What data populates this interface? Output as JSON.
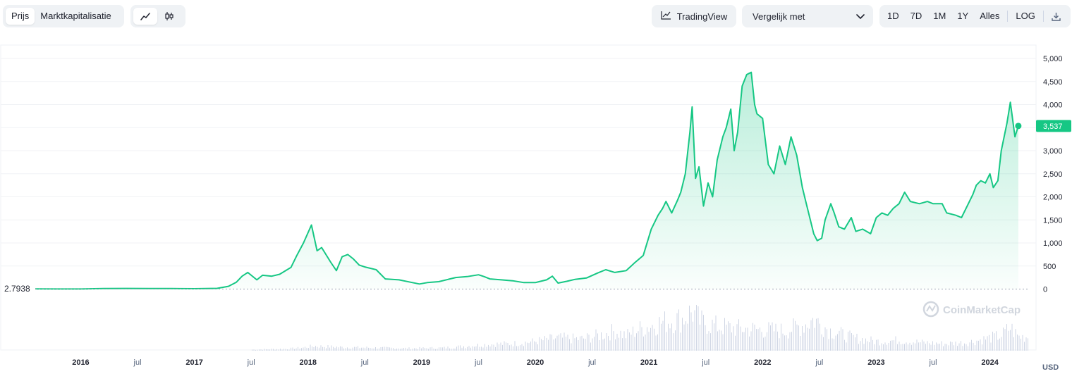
{
  "toolbar": {
    "tabs": [
      "Prijs",
      "Marktkapitalisatie"
    ],
    "active_tab": "Prijs",
    "chart_modes": [
      {
        "icon": "line-chart-icon",
        "active": true
      },
      {
        "icon": "candlestick-icon",
        "active": false
      }
    ],
    "tradingview_label": "TradingView",
    "compare_label": "Vergelijk met",
    "ranges": [
      "1D",
      "7D",
      "1M",
      "1Y",
      "Alles"
    ],
    "active_range": "Alles",
    "log_label": "LOG",
    "download_icon": "download-icon"
  },
  "watermark": "CoinMarketCap",
  "colors": {
    "line": "#16c784",
    "accent_bg": "#16c784",
    "volume": "#cfd6e4",
    "axis_text": "#58667e"
  },
  "chart_data": {
    "type": "line",
    "currency": "USD",
    "start_value_label": "2.7938",
    "current_price_label": "3,537",
    "x_ticks": [
      "2016",
      "jul",
      "2017",
      "jul",
      "2018",
      "jul",
      "2019",
      "jul",
      "2020",
      "jul",
      "2021",
      "jul",
      "2022",
      "jul",
      "2023",
      "jul",
      "2024"
    ],
    "y_ticks": [
      "0",
      "500",
      "1,000",
      "1,500",
      "2,000",
      "2,500",
      "3,000",
      "3,500",
      "4,000",
      "4,500",
      "5,000"
    ],
    "y_tick_values": [
      0,
      500,
      1000,
      1500,
      2000,
      2500,
      3000,
      3500,
      4000,
      4500,
      5000
    ],
    "ylim": [
      0,
      5000
    ],
    "xlim": [
      2015.6,
      2024.35
    ],
    "series": [
      {
        "points": [
          [
            2015.6,
            2.79
          ],
          [
            2015.8,
            1
          ],
          [
            2016.0,
            1
          ],
          [
            2016.2,
            10
          ],
          [
            2016.4,
            14
          ],
          [
            2016.6,
            12
          ],
          [
            2016.8,
            11
          ],
          [
            2017.0,
            8
          ],
          [
            2017.2,
            15
          ],
          [
            2017.3,
            60
          ],
          [
            2017.37,
            150
          ],
          [
            2017.42,
            280
          ],
          [
            2017.47,
            360
          ],
          [
            2017.55,
            200
          ],
          [
            2017.6,
            300
          ],
          [
            2017.68,
            280
          ],
          [
            2017.75,
            320
          ],
          [
            2017.85,
            470
          ],
          [
            2017.9,
            720
          ],
          [
            2017.96,
            1000
          ],
          [
            2018.03,
            1390
          ],
          [
            2018.08,
            830
          ],
          [
            2018.12,
            900
          ],
          [
            2018.2,
            580
          ],
          [
            2018.25,
            400
          ],
          [
            2018.3,
            700
          ],
          [
            2018.35,
            750
          ],
          [
            2018.4,
            650
          ],
          [
            2018.45,
            520
          ],
          [
            2018.5,
            480
          ],
          [
            2018.6,
            420
          ],
          [
            2018.68,
            220
          ],
          [
            2018.8,
            200
          ],
          [
            2018.9,
            150
          ],
          [
            2018.98,
            110
          ],
          [
            2019.05,
            140
          ],
          [
            2019.15,
            160
          ],
          [
            2019.3,
            250
          ],
          [
            2019.4,
            270
          ],
          [
            2019.5,
            310
          ],
          [
            2019.55,
            270
          ],
          [
            2019.6,
            220
          ],
          [
            2019.7,
            200
          ],
          [
            2019.8,
            180
          ],
          [
            2019.9,
            140
          ],
          [
            2020.0,
            140
          ],
          [
            2020.1,
            200
          ],
          [
            2020.15,
            280
          ],
          [
            2020.2,
            130
          ],
          [
            2020.28,
            170
          ],
          [
            2020.35,
            210
          ],
          [
            2020.45,
            240
          ],
          [
            2020.55,
            350
          ],
          [
            2020.62,
            420
          ],
          [
            2020.7,
            360
          ],
          [
            2020.8,
            400
          ],
          [
            2020.87,
            560
          ],
          [
            2020.95,
            730
          ],
          [
            2021.02,
            1300
          ],
          [
            2021.08,
            1600
          ],
          [
            2021.12,
            1750
          ],
          [
            2021.15,
            1900
          ],
          [
            2021.2,
            1650
          ],
          [
            2021.25,
            1920
          ],
          [
            2021.28,
            2100
          ],
          [
            2021.32,
            2500
          ],
          [
            2021.36,
            3400
          ],
          [
            2021.38,
            3950
          ],
          [
            2021.41,
            2400
          ],
          [
            2021.44,
            2650
          ],
          [
            2021.48,
            1800
          ],
          [
            2021.52,
            2300
          ],
          [
            2021.56,
            2000
          ],
          [
            2021.6,
            2800
          ],
          [
            2021.65,
            3300
          ],
          [
            2021.68,
            3500
          ],
          [
            2021.72,
            3900
          ],
          [
            2021.75,
            3000
          ],
          [
            2021.78,
            3400
          ],
          [
            2021.82,
            4400
          ],
          [
            2021.86,
            4650
          ],
          [
            2021.9,
            4700
          ],
          [
            2021.93,
            4000
          ],
          [
            2021.95,
            3800
          ],
          [
            2022.0,
            3700
          ],
          [
            2022.05,
            2700
          ],
          [
            2022.1,
            2500
          ],
          [
            2022.15,
            3100
          ],
          [
            2022.2,
            2700
          ],
          [
            2022.25,
            3300
          ],
          [
            2022.3,
            2900
          ],
          [
            2022.35,
            2200
          ],
          [
            2022.38,
            1900
          ],
          [
            2022.45,
            1200
          ],
          [
            2022.48,
            1050
          ],
          [
            2022.52,
            1100
          ],
          [
            2022.55,
            1500
          ],
          [
            2022.6,
            1850
          ],
          [
            2022.63,
            1650
          ],
          [
            2022.67,
            1350
          ],
          [
            2022.72,
            1300
          ],
          [
            2022.78,
            1550
          ],
          [
            2022.82,
            1250
          ],
          [
            2022.88,
            1300
          ],
          [
            2022.95,
            1200
          ],
          [
            2023.0,
            1550
          ],
          [
            2023.05,
            1650
          ],
          [
            2023.1,
            1600
          ],
          [
            2023.15,
            1750
          ],
          [
            2023.2,
            1850
          ],
          [
            2023.25,
            2100
          ],
          [
            2023.3,
            1900
          ],
          [
            2023.38,
            1850
          ],
          [
            2023.45,
            1900
          ],
          [
            2023.5,
            1850
          ],
          [
            2023.58,
            1850
          ],
          [
            2023.62,
            1650
          ],
          [
            2023.7,
            1600
          ],
          [
            2023.75,
            1550
          ],
          [
            2023.8,
            1800
          ],
          [
            2023.85,
            2050
          ],
          [
            2023.88,
            2250
          ],
          [
            2023.92,
            2350
          ],
          [
            2023.96,
            2300
          ],
          [
            2024.0,
            2500
          ],
          [
            2024.03,
            2200
          ],
          [
            2024.07,
            2350
          ],
          [
            2024.1,
            3000
          ],
          [
            2024.15,
            3600
          ],
          [
            2024.18,
            4050
          ],
          [
            2024.22,
            3300
          ],
          [
            2024.25,
            3537
          ]
        ]
      }
    ],
    "volume": [
      [
        2017.5,
        2
      ],
      [
        2017.8,
        3
      ],
      [
        2017.95,
        5
      ],
      [
        2018.05,
        8
      ],
      [
        2018.3,
        6
      ],
      [
        2018.6,
        5
      ],
      [
        2018.9,
        4
      ],
      [
        2019.2,
        5
      ],
      [
        2019.4,
        8
      ],
      [
        2019.6,
        11
      ],
      [
        2019.8,
        12
      ],
      [
        2020.0,
        16
      ],
      [
        2020.2,
        22
      ],
      [
        2020.4,
        20
      ],
      [
        2020.6,
        28
      ],
      [
        2020.7,
        34
      ],
      [
        2020.8,
        26
      ],
      [
        2020.9,
        36
      ],
      [
        2021.0,
        42
      ],
      [
        2021.1,
        48
      ],
      [
        2021.2,
        52
      ],
      [
        2021.3,
        55
      ],
      [
        2021.38,
        68
      ],
      [
        2021.45,
        50
      ],
      [
        2021.6,
        42
      ],
      [
        2021.8,
        38
      ],
      [
        2022.0,
        36
      ],
      [
        2022.2,
        34
      ],
      [
        2022.38,
        46
      ],
      [
        2022.45,
        54
      ],
      [
        2022.6,
        34
      ],
      [
        2022.8,
        22
      ],
      [
        2023.0,
        16
      ],
      [
        2023.2,
        18
      ],
      [
        2023.4,
        14
      ],
      [
        2023.6,
        12
      ],
      [
        2023.8,
        14
      ],
      [
        2023.95,
        20
      ],
      [
        2024.1,
        26
      ],
      [
        2024.18,
        40
      ],
      [
        2024.25,
        24
      ]
    ]
  }
}
